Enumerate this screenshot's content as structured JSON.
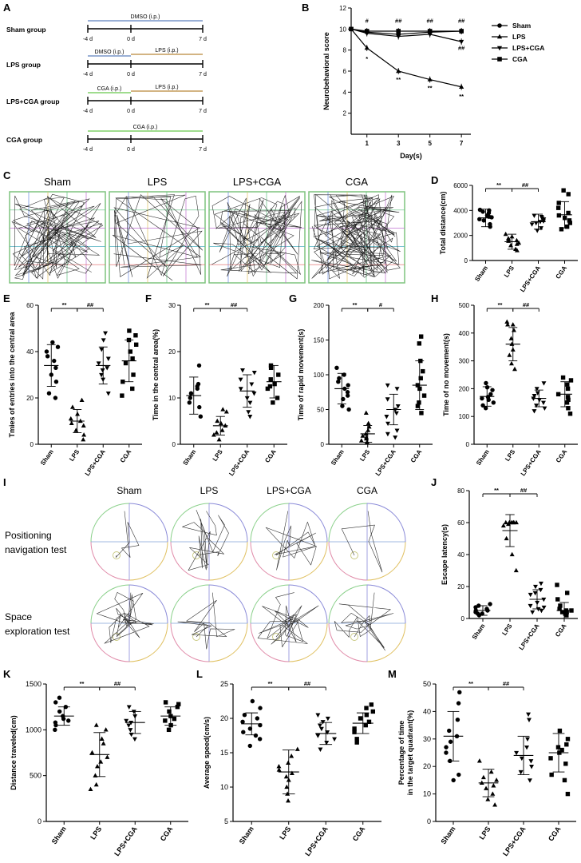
{
  "panels": {
    "A": "A",
    "B": "B",
    "C": "C",
    "D": "D",
    "E": "E",
    "F": "F",
    "G": "G",
    "H": "H",
    "I": "I",
    "J": "J",
    "K": "K",
    "L": "L",
    "M": "M"
  },
  "timeline": {
    "groups": [
      {
        "name": "Sham group",
        "treatments": [
          {
            "label": "DMSO (i.p.)",
            "span": "full",
            "color": "#9ab0d6"
          }
        ]
      },
      {
        "name": "LPS group",
        "treatments": [
          {
            "label": "DMSO (i.p.)",
            "span": "pre",
            "color": "#9ab0d6"
          },
          {
            "label": "LPS (i.p.)",
            "span": "post",
            "color": "#d3b483"
          }
        ]
      },
      {
        "name": "LPS+CGA group",
        "treatments": [
          {
            "label": "CGA (i.p.)",
            "span": "pre",
            "color": "#9fdc8e"
          },
          {
            "label": "LPS (i.p.)",
            "span": "post",
            "color": "#d3b483"
          }
        ]
      },
      {
        "name": "CGA group",
        "treatments": [
          {
            "label": "CGA (i.p.)",
            "span": "full",
            "color": "#9fdc8e"
          }
        ]
      }
    ],
    "ticks": [
      "-4 d",
      "0 d",
      "7 d"
    ]
  },
  "openfield": {
    "labels": [
      "Sham",
      "LPS",
      "LPS+CGA",
      "CGA"
    ]
  },
  "mwm": {
    "columns": [
      "Sham",
      "LPS",
      "LPS+CGA",
      "CGA"
    ],
    "row1": [
      "Positioning",
      "navigation test"
    ],
    "row2": [
      "Space",
      "exploration test"
    ]
  },
  "chart_data": [
    {
      "id": "B",
      "type": "line",
      "xlabel": "Day(s)",
      "ylabel": "Neurobehavioral score",
      "ylim": [
        0,
        12
      ],
      "yticks": [
        2,
        4,
        6,
        8,
        10,
        12
      ],
      "x": [
        0,
        1,
        3,
        5,
        7
      ],
      "xticks": [
        "1",
        "3",
        "5",
        "7"
      ],
      "series": [
        {
          "name": "Sham",
          "marker": "circle",
          "values": [
            10,
            9.7,
            9.5,
            9.7,
            9.8
          ]
        },
        {
          "name": "LPS",
          "marker": "triangle-up",
          "values": [
            10,
            8.2,
            6.0,
            5.2,
            4.5
          ]
        },
        {
          "name": "LPS+CGA",
          "marker": "triangle-down",
          "values": [
            10,
            9.6,
            9.3,
            9.5,
            8.8
          ]
        },
        {
          "name": "CGA",
          "marker": "square",
          "values": [
            10,
            9.8,
            9.8,
            9.8,
            9.8
          ]
        }
      ],
      "annotations": [
        {
          "x": 1,
          "y": 10.6,
          "text": "#"
        },
        {
          "x": 3,
          "y": 10.6,
          "text": "##"
        },
        {
          "x": 5,
          "y": 10.6,
          "text": "##"
        },
        {
          "x": 7,
          "y": 10.6,
          "text": "##"
        },
        {
          "x": 7,
          "y": 8.0,
          "text": "##"
        },
        {
          "x": 1,
          "y": 7.0,
          "text": "*"
        },
        {
          "x": 3,
          "y": 5.0,
          "text": "**"
        },
        {
          "x": 5,
          "y": 4.2,
          "text": "**"
        },
        {
          "x": 7,
          "y": 3.4,
          "text": "**"
        }
      ]
    },
    {
      "id": "D",
      "type": "scatter",
      "ylabel": "Total distance(cm)",
      "ylim": [
        0,
        6000
      ],
      "yticks": [
        0,
        2000,
        4000,
        6000
      ],
      "categories": [
        "Sham",
        "LPS",
        "LPS+CGA",
        "CGA"
      ],
      "means": [
        3400,
        1500,
        3100,
        3650
      ],
      "sds": [
        700,
        600,
        600,
        1050
      ],
      "values": [
        [
          3900,
          4050,
          3600,
          3500,
          3300,
          3200,
          2900,
          2700,
          3800,
          3450,
          4000
        ],
        [
          2100,
          1900,
          1700,
          1600,
          1400,
          1300,
          1200,
          900,
          800,
          1550,
          1750
        ],
        [
          3500,
          3400,
          3300,
          3150,
          3000,
          2900,
          2600,
          2400,
          3600,
          3100
        ],
        [
          5600,
          5300,
          4600,
          3800,
          3600,
          3400,
          3200,
          2700,
          2500,
          4200,
          3000
        ]
      ],
      "markers": [
        "circle",
        "triangle-up",
        "triangle-down",
        "square"
      ],
      "sig": [
        {
          "from": 0,
          "to": 1,
          "text": "**"
        },
        {
          "from": 1,
          "to": 2,
          "text": "##"
        }
      ]
    },
    {
      "id": "E",
      "type": "scatter",
      "ylabel": "Tmies of entries into the central area",
      "ylim": [
        0,
        60
      ],
      "yticks": [
        0,
        20,
        40,
        60
      ],
      "categories": [
        "Sham",
        "LPS",
        "LPS+CGA",
        "CGA"
      ],
      "means": [
        34,
        10,
        34,
        36
      ],
      "sds": [
        9,
        5,
        8,
        9
      ],
      "values": [
        [
          44,
          42,
          40,
          38,
          36,
          33,
          30,
          27,
          22,
          20
        ],
        [
          19,
          16,
          13,
          11,
          10,
          9,
          8,
          6,
          4,
          2
        ],
        [
          48,
          45,
          41,
          37,
          35,
          33,
          32,
          30,
          28,
          22
        ],
        [
          49,
          47,
          45,
          43,
          40,
          37,
          35,
          30,
          27,
          24,
          21
        ]
      ],
      "markers": [
        "circle",
        "triangle-up",
        "triangle-down",
        "square"
      ],
      "sig": [
        {
          "from": 0,
          "to": 1,
          "text": "**"
        },
        {
          "from": 1,
          "to": 2,
          "text": "##"
        }
      ]
    },
    {
      "id": "F",
      "type": "scatter",
      "ylabel": "Time in the central area(%)",
      "ylim": [
        0,
        30
      ],
      "yticks": [
        0,
        10,
        20,
        30
      ],
      "categories": [
        "Sham",
        "LPS",
        "LPS+CGA",
        "CGA"
      ],
      "means": [
        10.5,
        4,
        11.5,
        13.5
      ],
      "sds": [
        4,
        2,
        3.5,
        3.5
      ],
      "values": [
        [
          17,
          13,
          12.5,
          12,
          11,
          10,
          9,
          8,
          6
        ],
        [
          7.5,
          7,
          5,
          4.5,
          4,
          3,
          2.5,
          2,
          1
        ],
        [
          16,
          15.5,
          14,
          13,
          12,
          11,
          10,
          9,
          7,
          6
        ],
        [
          17,
          16.5,
          15,
          14,
          13,
          12.5,
          12,
          10,
          9
        ]
      ],
      "markers": [
        "circle",
        "triangle-up",
        "triangle-down",
        "square"
      ],
      "sig": [
        {
          "from": 0,
          "to": 1,
          "text": "**"
        },
        {
          "from": 1,
          "to": 2,
          "text": "##"
        }
      ]
    },
    {
      "id": "G",
      "type": "scatter",
      "ylabel": "Time of rapid movement(s)",
      "ylim": [
        0,
        200
      ],
      "yticks": [
        0,
        50,
        100,
        150,
        200
      ],
      "categories": [
        "Sham",
        "LPS",
        "LPS+CGA",
        "CGA"
      ],
      "means": [
        80,
        15,
        50,
        85
      ],
      "sds": [
        22,
        12,
        22,
        35
      ],
      "values": [
        [
          110,
          100,
          95,
          90,
          85,
          80,
          75,
          70,
          65,
          55,
          50
        ],
        [
          45,
          30,
          25,
          20,
          15,
          12,
          10,
          8,
          5,
          3
        ],
        [
          85,
          80,
          65,
          55,
          50,
          45,
          40,
          30,
          20,
          15,
          10
        ],
        [
          155,
          145,
          120,
          105,
          95,
          85,
          80,
          70,
          60,
          55,
          45
        ]
      ],
      "markers": [
        "circle",
        "triangle-up",
        "triangle-down",
        "square"
      ],
      "sig": [
        {
          "from": 0,
          "to": 1,
          "text": "**"
        },
        {
          "from": 1,
          "to": 2,
          "text": "#"
        }
      ]
    },
    {
      "id": "H",
      "type": "scatter",
      "ylabel": "Time of no movement(s)",
      "ylim": [
        0,
        500
      ],
      "yticks": [
        0,
        100,
        200,
        300,
        400,
        500
      ],
      "categories": [
        "Sham",
        "LPS",
        "LPS+CGA",
        "CGA"
      ],
      "means": [
        172,
        360,
        165,
        180
      ],
      "sds": [
        35,
        60,
        30,
        45
      ],
      "values": [
        [
          220,
          205,
          195,
          180,
          170,
          165,
          160,
          150,
          140,
          130
        ],
        [
          440,
          430,
          410,
          380,
          360,
          340,
          320,
          290,
          270,
          430
        ],
        [
          220,
          200,
          185,
          175,
          165,
          160,
          150,
          140,
          130,
          120
        ],
        [
          240,
          230,
          215,
          200,
          180,
          170,
          160,
          150,
          130,
          110
        ]
      ],
      "markers": [
        "circle",
        "triangle-up",
        "triangle-down",
        "square"
      ],
      "sig": [
        {
          "from": 0,
          "to": 1,
          "text": "**"
        },
        {
          "from": 1,
          "to": 2,
          "text": "##"
        }
      ]
    },
    {
      "id": "J",
      "type": "scatter",
      "ylabel": "Escape latency(s)",
      "ylim": [
        0,
        80
      ],
      "yticks": [
        0,
        20,
        40,
        60,
        80
      ],
      "categories": [
        "Sham",
        "LPS",
        "LPS+CGA",
        "CGA"
      ],
      "means": [
        5,
        55,
        12,
        5
      ],
      "sds": [
        3,
        10,
        6,
        5
      ],
      "values": [
        [
          9,
          8,
          7,
          6,
          5,
          5,
          4,
          4,
          3,
          3,
          2
        ],
        [
          60,
          60,
          60,
          60,
          60,
          60,
          59,
          58,
          50,
          40,
          30
        ],
        [
          22,
          20,
          18,
          16,
          15,
          12,
          10,
          8,
          7,
          6,
          5,
          4
        ],
        [
          21,
          16,
          12,
          8,
          6,
          5,
          5,
          4,
          4,
          3,
          3,
          2
        ]
      ],
      "markers": [
        "circle",
        "triangle-up",
        "triangle-down",
        "square"
      ],
      "sig": [
        {
          "from": 0,
          "to": 1,
          "text": "**"
        },
        {
          "from": 1,
          "to": 2,
          "text": "##"
        }
      ]
    },
    {
      "id": "K",
      "type": "scatter",
      "ylabel": "Distance traveled(cm)",
      "ylim": [
        0,
        1500
      ],
      "yticks": [
        0,
        500,
        1000,
        1500
      ],
      "categories": [
        "Sham",
        "LPS",
        "LPS+CGA",
        "CGA"
      ],
      "means": [
        1150,
        730,
        1080,
        1150
      ],
      "sds": [
        100,
        240,
        120,
        100
      ],
      "values": [
        [
          1350,
          1300,
          1250,
          1200,
          1150,
          1120,
          1100,
          1080,
          1050,
          1000
        ],
        [
          1050,
          1000,
          900,
          850,
          750,
          700,
          650,
          600,
          500,
          400,
          350
        ],
        [
          1250,
          1200,
          1150,
          1100,
          1080,
          1050,
          1000,
          950,
          900
        ],
        [
          1300,
          1280,
          1250,
          1200,
          1150,
          1120,
          1100,
          1050,
          1000
        ]
      ],
      "markers": [
        "circle",
        "triangle-up",
        "triangle-down",
        "square"
      ],
      "sig": [
        {
          "from": 0,
          "to": 1,
          "text": "**"
        },
        {
          "from": 1,
          "to": 2,
          "text": "##"
        }
      ]
    },
    {
      "id": "L",
      "type": "scatter",
      "ylabel": "Average speed(cm/s)",
      "ylim": [
        5,
        25
      ],
      "yticks": [
        5,
        10,
        15,
        20,
        25
      ],
      "categories": [
        "Sham",
        "LPS",
        "LPS+CGA",
        "CGA"
      ],
      "means": [
        19.2,
        12.2,
        17.8,
        19.3
      ],
      "sds": [
        1.6,
        3.2,
        1.6,
        1.5
      ],
      "values": [
        [
          22.5,
          21.5,
          20.5,
          20,
          19.5,
          19,
          18.5,
          18,
          17.5,
          17,
          16
        ],
        [
          15.5,
          14.5,
          13.5,
          13,
          12.5,
          12,
          11.5,
          11,
          10,
          9,
          8
        ],
        [
          20.5,
          20,
          19.5,
          19,
          18.5,
          18,
          17.5,
          17,
          16.5,
          15.5
        ],
        [
          22,
          21.5,
          21,
          20.5,
          20,
          19.5,
          19,
          18.5,
          18,
          17,
          16.5
        ]
      ],
      "markers": [
        "circle",
        "triangle-up",
        "triangle-down",
        "square"
      ],
      "sig": [
        {
          "from": 0,
          "to": 1,
          "text": "**"
        },
        {
          "from": 1,
          "to": 2,
          "text": "##"
        }
      ]
    },
    {
      "id": "M",
      "type": "scatter",
      "ylabel": [
        "Percentage of time",
        "in the target quadrant(%)"
      ],
      "ylim": [
        0,
        50
      ],
      "yticks": [
        0,
        10,
        20,
        30,
        40,
        50
      ],
      "categories": [
        "Sham",
        "LPS",
        "LPS+CGA",
        "CGA"
      ],
      "means": [
        31,
        14,
        24,
        25
      ],
      "sds": [
        9,
        5,
        7,
        7
      ],
      "values": [
        [
          47,
          43,
          37,
          33,
          31,
          29,
          27,
          25,
          22,
          17,
          15
        ],
        [
          22,
          18,
          16,
          15,
          14,
          13,
          12,
          10,
          8,
          6
        ],
        [
          39,
          37,
          30,
          27,
          25,
          23,
          22,
          20,
          18,
          15
        ],
        [
          33,
          30,
          28,
          27,
          26,
          25,
          23,
          21,
          17,
          15,
          10
        ]
      ],
      "markers": [
        "circle",
        "triangle-up",
        "triangle-down",
        "square"
      ],
      "sig": [
        {
          "from": 0,
          "to": 1,
          "text": "**"
        },
        {
          "from": 1,
          "to": 2,
          "text": "##"
        }
      ]
    }
  ]
}
